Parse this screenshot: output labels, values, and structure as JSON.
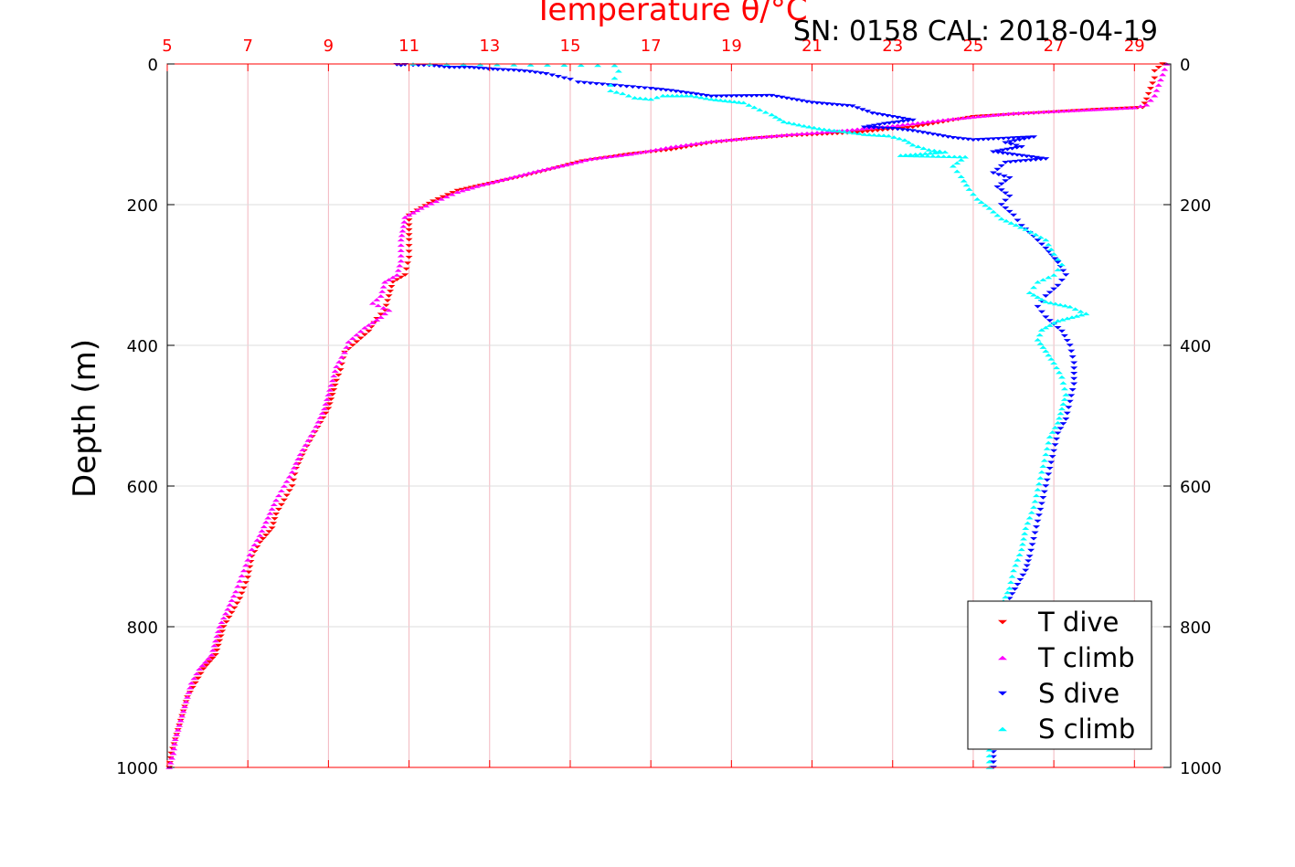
{
  "chart_data": {
    "type": "scatter",
    "title": "Temperature θ/°C",
    "annotation": "SN: 0158  CAL: 2018-04-19",
    "ylabel": "Depth (m)",
    "xlim": [
      5,
      29.9
    ],
    "ylim": [
      0,
      1000
    ],
    "y_reversed": true,
    "x_ticks": [
      5,
      7,
      9,
      11,
      13,
      15,
      17,
      19,
      21,
      23,
      25,
      27,
      29
    ],
    "x_tick_labels": [
      "5",
      "7",
      "9",
      "11",
      "13",
      "15",
      "17",
      "19",
      "21",
      "23",
      "25",
      "27",
      "29"
    ],
    "y_ticks": [
      0,
      200,
      400,
      600,
      800,
      1000
    ],
    "y_tick_labels": [
      "0",
      "200",
      "400",
      "600",
      "800",
      "1000"
    ],
    "grid": true,
    "legend_position": "bottom-right",
    "colors": {
      "axis_top": "#ff0000",
      "grid_x": "#f2b6be",
      "grid_y": "#dcdcdc",
      "title": "#ff0000"
    },
    "series": [
      {
        "name": "T dive",
        "marker": "triangle-down",
        "color": "#ff0000",
        "points": [
          [
            29.7,
            0
          ],
          [
            29.5,
            10
          ],
          [
            29.5,
            20
          ],
          [
            29.4,
            35
          ],
          [
            29.3,
            50
          ],
          [
            29.2,
            62
          ],
          [
            28.0,
            65
          ],
          [
            26.5,
            70
          ],
          [
            25.0,
            75
          ],
          [
            23.5,
            90
          ],
          [
            22.0,
            98
          ],
          [
            20.5,
            102
          ],
          [
            19.5,
            106
          ],
          [
            18.5,
            112
          ],
          [
            17.5,
            122
          ],
          [
            16.5,
            128
          ],
          [
            15.3,
            138
          ],
          [
            14.5,
            150
          ],
          [
            13.8,
            160
          ],
          [
            13.0,
            170
          ],
          [
            12.2,
            180
          ],
          [
            11.6,
            195
          ],
          [
            11.2,
            208
          ],
          [
            11.0,
            215
          ],
          [
            11.0,
            250
          ],
          [
            11.0,
            275
          ],
          [
            10.9,
            300
          ],
          [
            10.6,
            310
          ],
          [
            10.5,
            330
          ],
          [
            10.4,
            350
          ],
          [
            10.2,
            362
          ],
          [
            10.0,
            380
          ],
          [
            9.7,
            395
          ],
          [
            9.4,
            410
          ],
          [
            9.3,
            435
          ],
          [
            9.2,
            450
          ],
          [
            9.1,
            470
          ],
          [
            9.0,
            490
          ],
          [
            8.8,
            510
          ],
          [
            8.6,
            530
          ],
          [
            8.4,
            550
          ],
          [
            8.2,
            575
          ],
          [
            8.1,
            600
          ],
          [
            7.9,
            620
          ],
          [
            7.7,
            640
          ],
          [
            7.6,
            660
          ],
          [
            7.3,
            680
          ],
          [
            7.1,
            700
          ],
          [
            7.0,
            730
          ],
          [
            6.8,
            760
          ],
          [
            6.6,
            780
          ],
          [
            6.4,
            800
          ],
          [
            6.3,
            820
          ],
          [
            6.2,
            840
          ],
          [
            5.9,
            860
          ],
          [
            5.7,
            880
          ],
          [
            5.5,
            900
          ],
          [
            5.4,
            920
          ],
          [
            5.3,
            940
          ],
          [
            5.2,
            960
          ],
          [
            5.1,
            980
          ],
          [
            5.05,
            1000
          ]
        ]
      },
      {
        "name": "T climb",
        "marker": "triangle-up",
        "color": "#ff00ff",
        "points": [
          [
            29.8,
            0
          ],
          [
            29.7,
            15
          ],
          [
            29.6,
            30
          ],
          [
            29.5,
            45
          ],
          [
            29.3,
            58
          ],
          [
            29.0,
            62
          ],
          [
            27.5,
            66
          ],
          [
            26.0,
            70
          ],
          [
            24.5,
            78
          ],
          [
            23.0,
            88
          ],
          [
            21.5,
            96
          ],
          [
            20.5,
            100
          ],
          [
            19.5,
            105
          ],
          [
            18.5,
            110
          ],
          [
            17.5,
            118
          ],
          [
            16.5,
            128
          ],
          [
            15.5,
            135
          ],
          [
            15.0,
            142
          ],
          [
            14.2,
            152
          ],
          [
            13.5,
            162
          ],
          [
            12.8,
            172
          ],
          [
            12.2,
            182
          ],
          [
            11.8,
            192
          ],
          [
            11.3,
            205
          ],
          [
            10.9,
            218
          ],
          [
            10.8,
            250
          ],
          [
            10.8,
            280
          ],
          [
            10.7,
            300
          ],
          [
            10.4,
            310
          ],
          [
            10.3,
            330
          ],
          [
            10.1,
            340
          ],
          [
            10.5,
            350
          ],
          [
            10.3,
            360
          ],
          [
            9.9,
            375
          ],
          [
            9.5,
            395
          ],
          [
            9.4,
            410
          ],
          [
            9.2,
            430
          ],
          [
            9.1,
            450
          ],
          [
            9.0,
            470
          ],
          [
            8.9,
            490
          ],
          [
            8.7,
            515
          ],
          [
            8.5,
            535
          ],
          [
            8.3,
            555
          ],
          [
            8.1,
            580
          ],
          [
            7.9,
            600
          ],
          [
            7.7,
            620
          ],
          [
            7.5,
            645
          ],
          [
            7.3,
            670
          ],
          [
            7.1,
            690
          ],
          [
            6.9,
            720
          ],
          [
            6.7,
            750
          ],
          [
            6.5,
            775
          ],
          [
            6.3,
            800
          ],
          [
            6.2,
            820
          ],
          [
            6.1,
            840
          ],
          [
            5.8,
            860
          ],
          [
            5.6,
            880
          ],
          [
            5.5,
            900
          ],
          [
            5.4,
            920
          ],
          [
            5.3,
            940
          ],
          [
            5.2,
            960
          ],
          [
            5.15,
            980
          ],
          [
            5.05,
            1000
          ]
        ]
      },
      {
        "name": "S dive",
        "marker": "triangle-down",
        "color": "#0000ff",
        "points": [
          [
            10.7,
            1
          ],
          [
            10.8,
            2
          ],
          [
            10.9,
            1
          ],
          [
            11.1,
            2
          ],
          [
            11.5,
            2
          ],
          [
            12.0,
            5
          ],
          [
            12.5,
            5
          ],
          [
            13.2,
            8
          ],
          [
            13.6,
            9
          ],
          [
            14.0,
            11
          ],
          [
            14.4,
            14
          ],
          [
            14.7,
            18
          ],
          [
            15.0,
            22
          ],
          [
            15.2,
            26
          ],
          [
            17.0,
            35
          ],
          [
            17.5,
            38
          ],
          [
            18.0,
            42
          ],
          [
            18.5,
            46
          ],
          [
            20.0,
            45
          ],
          [
            21.0,
            55
          ],
          [
            22.0,
            60
          ],
          [
            22.5,
            70
          ],
          [
            23.0,
            75
          ],
          [
            23.5,
            80
          ],
          [
            22.8,
            85
          ],
          [
            22.3,
            90
          ],
          [
            23.0,
            92
          ],
          [
            23.5,
            95
          ],
          [
            24.0,
            100
          ],
          [
            24.5,
            105
          ],
          [
            25.0,
            108
          ],
          [
            26.5,
            104
          ],
          [
            25.8,
            112
          ],
          [
            26.2,
            118
          ],
          [
            25.5,
            125
          ],
          [
            26.8,
            135
          ],
          [
            25.8,
            140
          ],
          [
            25.5,
            155
          ],
          [
            25.9,
            162
          ],
          [
            25.6,
            175
          ],
          [
            25.9,
            188
          ],
          [
            25.7,
            200
          ],
          [
            26.0,
            215
          ],
          [
            26.2,
            230
          ],
          [
            26.5,
            245
          ],
          [
            26.8,
            262
          ],
          [
            27.1,
            282
          ],
          [
            27.3,
            300
          ],
          [
            27.1,
            315
          ],
          [
            26.8,
            330
          ],
          [
            26.6,
            345
          ],
          [
            26.8,
            360
          ],
          [
            27.2,
            380
          ],
          [
            27.4,
            400
          ],
          [
            27.5,
            425
          ],
          [
            27.5,
            455
          ],
          [
            27.4,
            480
          ],
          [
            27.3,
            505
          ],
          [
            27.1,
            525
          ],
          [
            27.0,
            550
          ],
          [
            26.9,
            575
          ],
          [
            26.8,
            600
          ],
          [
            26.7,
            625
          ],
          [
            26.6,
            650
          ],
          [
            26.5,
            675
          ],
          [
            26.4,
            700
          ],
          [
            26.3,
            720
          ],
          [
            26.1,
            740
          ],
          [
            25.9,
            760
          ],
          [
            25.8,
            790
          ],
          [
            25.7,
            830
          ],
          [
            25.7,
            870
          ],
          [
            25.6,
            910
          ],
          [
            25.5,
            950
          ],
          [
            25.5,
            985
          ],
          [
            25.5,
            1000
          ]
        ]
      },
      {
        "name": "S climb",
        "marker": "triangle-up",
        "color": "#00ffff",
        "points": [
          [
            11.1,
            0
          ],
          [
            16.1,
            2
          ],
          [
            16.2,
            10
          ],
          [
            16.1,
            20
          ],
          [
            16.0,
            30
          ],
          [
            16.0,
            38
          ],
          [
            16.3,
            42
          ],
          [
            16.6,
            48
          ],
          [
            17.0,
            50
          ],
          [
            17.3,
            45
          ],
          [
            18.0,
            45
          ],
          [
            18.5,
            50
          ],
          [
            19.3,
            55
          ],
          [
            19.7,
            65
          ],
          [
            20.0,
            72
          ],
          [
            20.3,
            82
          ],
          [
            20.8,
            88
          ],
          [
            21.3,
            93
          ],
          [
            21.8,
            96
          ],
          [
            22.3,
            100
          ],
          [
            22.9,
            102
          ],
          [
            23.3,
            108
          ],
          [
            23.5,
            115
          ],
          [
            23.9,
            122
          ],
          [
            24.3,
            125
          ],
          [
            23.2,
            130
          ],
          [
            24.8,
            132
          ],
          [
            24.5,
            145
          ],
          [
            24.7,
            160
          ],
          [
            24.9,
            178
          ],
          [
            25.1,
            192
          ],
          [
            25.4,
            205
          ],
          [
            25.7,
            220
          ],
          [
            26.3,
            235
          ],
          [
            26.8,
            250
          ],
          [
            27.0,
            270
          ],
          [
            27.2,
            285
          ],
          [
            27.0,
            300
          ],
          [
            26.6,
            310
          ],
          [
            26.4,
            325
          ],
          [
            26.8,
            338
          ],
          [
            27.4,
            345
          ],
          [
            27.8,
            355
          ],
          [
            27.1,
            365
          ],
          [
            26.7,
            378
          ],
          [
            26.6,
            392
          ],
          [
            26.8,
            408
          ],
          [
            27.0,
            425
          ],
          [
            27.2,
            445
          ],
          [
            27.3,
            470
          ],
          [
            27.2,
            490
          ],
          [
            27.1,
            510
          ],
          [
            26.9,
            530
          ],
          [
            26.8,
            555
          ],
          [
            26.7,
            580
          ],
          [
            26.6,
            605
          ],
          [
            26.5,
            630
          ],
          [
            26.3,
            660
          ],
          [
            26.2,
            690
          ],
          [
            26.0,
            720
          ],
          [
            25.9,
            745
          ],
          [
            25.7,
            770
          ],
          [
            25.6,
            810
          ],
          [
            25.6,
            860
          ],
          [
            25.5,
            900
          ],
          [
            25.5,
            940
          ],
          [
            25.4,
            975
          ],
          [
            25.4,
            1000
          ]
        ]
      }
    ]
  }
}
